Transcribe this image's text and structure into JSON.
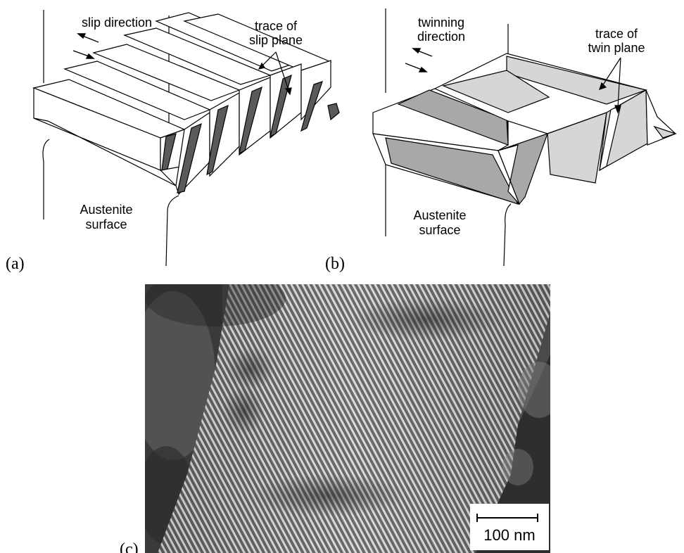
{
  "panels": [
    {
      "id": "a",
      "tag": "(a)",
      "labels": {
        "direction": "slip direction",
        "plane_line1": "trace of",
        "plane_line2": "slip plane",
        "surface_line1": "Austenite",
        "surface_line2": "surface"
      }
    },
    {
      "id": "b",
      "tag": "(b)",
      "labels": {
        "direction_line1": "twinning",
        "direction_line2": "direction",
        "plane_line1": "trace of",
        "plane_line2": "twin plane",
        "surface_line1": "Austenite",
        "surface_line2": "surface"
      }
    },
    {
      "id": "c",
      "tag": "(c)",
      "scale_bar": "100 nm"
    }
  ],
  "colors": {
    "stripe_dark": "#5a5a5a",
    "twin_grey": "#a8a8a8",
    "twin_light": "#d6d6d6",
    "line": "#000000"
  }
}
